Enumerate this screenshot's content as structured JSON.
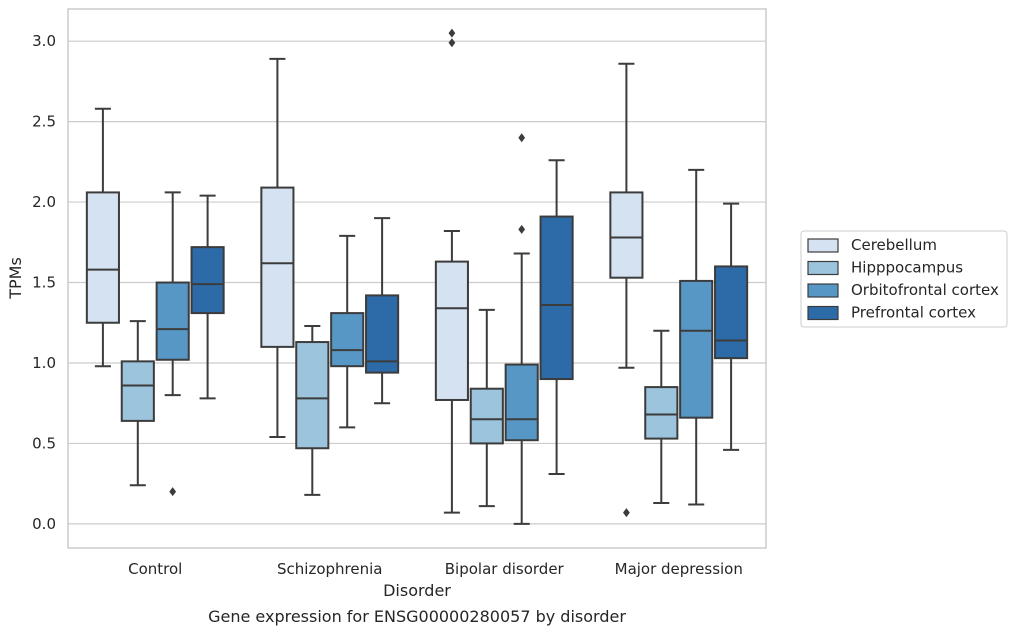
{
  "chart_data": {
    "type": "boxplot",
    "caption": "Gene expression for ENSG00000280057 by disorder",
    "xlabel": "Disorder",
    "ylabel": "TPMs",
    "ylim": [
      -0.15,
      3.2
    ],
    "yticks": [
      "0.0",
      "0.5",
      "1.0",
      "1.5",
      "2.0",
      "2.5",
      "3.0"
    ],
    "grid": true,
    "legend_position": "right",
    "categories": [
      "Control",
      "Schizophrenia",
      "Bipolar disorder",
      "Major depression"
    ],
    "series": [
      {
        "name": "Cerebellum",
        "color": "#d4e2f1",
        "boxes": [
          {
            "min": 0.98,
            "q1": 1.25,
            "median": 1.58,
            "q3": 2.06,
            "max": 2.58,
            "outliers": []
          },
          {
            "min": 0.54,
            "q1": 1.1,
            "median": 1.62,
            "q3": 2.09,
            "max": 2.89,
            "outliers": []
          },
          {
            "min": 0.07,
            "q1": 0.77,
            "median": 1.34,
            "q3": 1.63,
            "max": 1.82,
            "outliers": [
              3.05,
              2.99
            ]
          },
          {
            "min": 0.97,
            "q1": 1.53,
            "median": 1.78,
            "q3": 2.06,
            "max": 2.86,
            "outliers": [
              0.07
            ]
          }
        ]
      },
      {
        "name": "Hipppocampus",
        "color": "#9dc4dd",
        "boxes": [
          {
            "min": 0.24,
            "q1": 0.64,
            "median": 0.86,
            "q3": 1.01,
            "max": 1.26,
            "outliers": []
          },
          {
            "min": 0.18,
            "q1": 0.47,
            "median": 0.78,
            "q3": 1.13,
            "max": 1.23,
            "outliers": []
          },
          {
            "min": 0.11,
            "q1": 0.5,
            "median": 0.65,
            "q3": 0.84,
            "max": 1.33,
            "outliers": []
          },
          {
            "min": 0.13,
            "q1": 0.53,
            "median": 0.68,
            "q3": 0.85,
            "max": 1.2,
            "outliers": []
          }
        ]
      },
      {
        "name": "Orbitofrontal cortex",
        "color": "#5797c6",
        "boxes": [
          {
            "min": 0.8,
            "q1": 1.02,
            "median": 1.21,
            "q3": 1.5,
            "max": 2.06,
            "outliers": [
              0.2
            ]
          },
          {
            "min": 0.6,
            "q1": 0.98,
            "median": 1.08,
            "q3": 1.31,
            "max": 1.79,
            "outliers": []
          },
          {
            "min": 0.0,
            "q1": 0.52,
            "median": 0.65,
            "q3": 0.99,
            "max": 1.68,
            "outliers": [
              2.4,
              1.83
            ]
          },
          {
            "min": 0.12,
            "q1": 0.66,
            "median": 1.2,
            "q3": 1.51,
            "max": 2.2,
            "outliers": []
          }
        ]
      },
      {
        "name": "Prefrontal cortex",
        "color": "#2c6aa8",
        "boxes": [
          {
            "min": 0.78,
            "q1": 1.31,
            "median": 1.49,
            "q3": 1.72,
            "max": 2.04,
            "outliers": []
          },
          {
            "min": 0.75,
            "q1": 0.94,
            "median": 1.01,
            "q3": 1.42,
            "max": 1.9,
            "outliers": []
          },
          {
            "min": 0.31,
            "q1": 0.9,
            "median": 1.36,
            "q3": 1.91,
            "max": 2.26,
            "outliers": []
          },
          {
            "min": 0.46,
            "q1": 1.03,
            "median": 1.14,
            "q3": 1.6,
            "max": 1.99,
            "outliers": []
          }
        ]
      }
    ]
  }
}
